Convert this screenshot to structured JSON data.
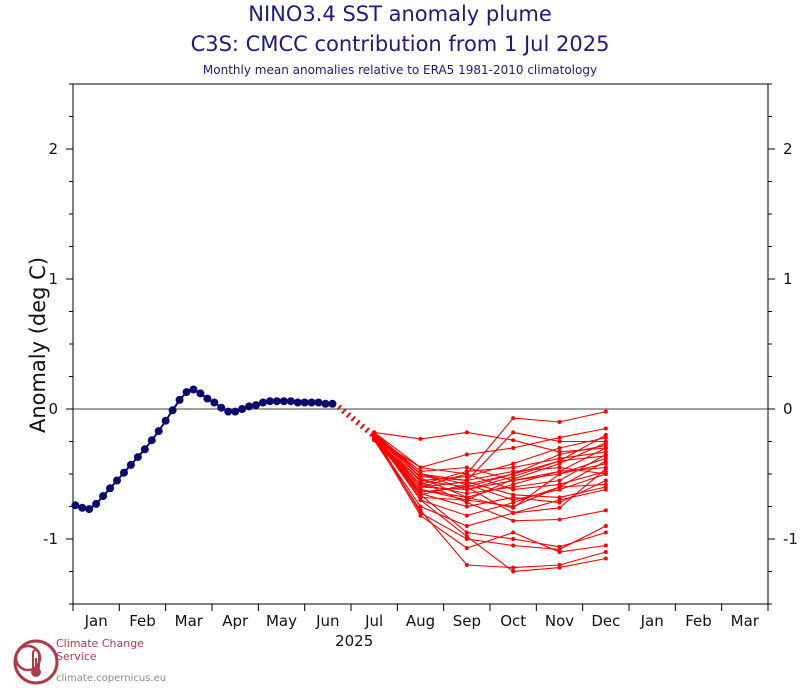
{
  "title": "NINO3.4 SST anomaly plume",
  "subtitle": "C3S: CMCC contribution from 1 Jul 2025",
  "caption": "Monthly mean anomalies relative to ERA5 1981-2010 climatology",
  "logo": {
    "text": "Climate Change Service",
    "url": "climate.copernicus.eu"
  },
  "colors": {
    "observed": "#0a0a6e",
    "forecast": "#ff0000",
    "title": "#1a1a80"
  },
  "chart_data": {
    "type": "line",
    "ylabel": "Anomaly (deg C)",
    "ylim": [
      -1.5,
      2.5
    ],
    "yticks": [
      -1,
      0,
      1,
      2
    ],
    "ytick_labels": [
      "-1",
      "0",
      "1",
      "2"
    ],
    "x_months": [
      "Jan",
      "Feb",
      "Mar",
      "Apr",
      "May",
      "Jun",
      "Jul",
      "Aug",
      "Sep",
      "Oct",
      "Nov",
      "Dec",
      "Jan",
      "Feb",
      "Mar"
    ],
    "year_label": "2025",
    "observed": {
      "name": "ERA5 observed (weekly)",
      "t": [
        -0.45,
        -0.3,
        -0.15,
        0.0,
        0.15,
        0.3,
        0.45,
        0.6,
        0.75,
        0.9,
        1.05,
        1.2,
        1.35,
        1.5,
        1.65,
        1.8,
        1.95,
        2.1,
        2.25,
        2.4,
        2.55,
        2.7,
        2.85,
        3.0,
        3.15,
        3.3,
        3.45,
        3.6,
        3.75,
        3.9,
        4.05,
        4.2,
        4.35,
        4.5,
        4.65,
        4.8,
        4.95,
        5.1
      ],
      "values": [
        -0.74,
        -0.76,
        -0.77,
        -0.73,
        -0.67,
        -0.61,
        -0.55,
        -0.49,
        -0.43,
        -0.37,
        -0.31,
        -0.24,
        -0.17,
        -0.09,
        -0.01,
        0.07,
        0.13,
        0.15,
        0.12,
        0.08,
        0.05,
        0.01,
        -0.02,
        -0.02,
        0.0,
        0.02,
        0.03,
        0.05,
        0.06,
        0.06,
        0.06,
        0.06,
        0.05,
        0.05,
        0.05,
        0.05,
        0.04,
        0.04
      ]
    },
    "forecast": {
      "name": "CMCC ensemble members",
      "t": [
        6,
        7,
        8,
        9,
        10,
        11
      ],
      "members": [
        [
          -0.18,
          -0.23,
          -0.18,
          -0.24,
          -0.33,
          -0.3
        ],
        [
          -0.2,
          -0.6,
          -0.5,
          -0.07,
          -0.1,
          -0.02
        ],
        [
          -0.22,
          -0.45,
          -0.35,
          -0.3,
          -0.22,
          -0.15
        ],
        [
          -0.2,
          -0.5,
          -0.55,
          -0.18,
          -0.25,
          -0.25
        ],
        [
          -0.23,
          -0.55,
          -0.6,
          -0.5,
          -0.4,
          -0.2
        ],
        [
          -0.19,
          -0.48,
          -0.45,
          -0.55,
          -0.48,
          -0.45
        ],
        [
          -0.21,
          -0.58,
          -0.65,
          -0.6,
          -0.55,
          -0.35
        ],
        [
          -0.24,
          -0.62,
          -0.7,
          -0.75,
          -0.6,
          -0.4
        ],
        [
          -0.2,
          -0.52,
          -0.55,
          -0.48,
          -0.45,
          -0.5
        ],
        [
          -0.22,
          -0.65,
          -0.75,
          -0.68,
          -0.72,
          -0.55
        ],
        [
          -0.18,
          -0.45,
          -0.5,
          -0.62,
          -0.58,
          -0.48
        ],
        [
          -0.2,
          -0.7,
          -0.82,
          -0.72,
          -0.6,
          -0.58
        ],
        [
          -0.21,
          -0.6,
          -0.62,
          -0.55,
          -0.5,
          -0.42
        ],
        [
          -0.23,
          -0.75,
          -0.9,
          -0.8,
          -0.7,
          -0.62
        ],
        [
          -0.2,
          -0.8,
          -1.0,
          -1.05,
          -1.08,
          -0.9
        ],
        [
          -0.22,
          -0.82,
          -1.07,
          -0.95,
          -1.1,
          -1.05
        ],
        [
          -0.24,
          -0.78,
          -1.2,
          -1.22,
          -1.2,
          -1.1
        ],
        [
          -0.2,
          -0.7,
          -0.98,
          -1.25,
          -1.22,
          -1.15
        ],
        [
          -0.21,
          -0.66,
          -0.95,
          -1.0,
          -1.06,
          -0.95
        ],
        [
          -0.19,
          -0.56,
          -0.72,
          -0.86,
          -0.85,
          -0.78
        ],
        [
          -0.2,
          -0.5,
          -0.58,
          -0.5,
          -0.35,
          -0.28
        ],
        [
          -0.22,
          -0.62,
          -0.68,
          -0.58,
          -0.48,
          -0.3
        ],
        [
          -0.2,
          -0.55,
          -0.52,
          -0.42,
          -0.3,
          -0.22
        ],
        [
          -0.23,
          -0.66,
          -0.58,
          -0.7,
          -0.62,
          -0.5
        ],
        [
          -0.21,
          -0.58,
          -0.48,
          -0.45,
          -0.38,
          -0.33
        ],
        [
          -0.19,
          -0.53,
          -0.68,
          -0.76,
          -0.5,
          -0.38
        ],
        [
          -0.22,
          -0.6,
          -0.56,
          -0.66,
          -0.68,
          -0.6
        ],
        [
          -0.2,
          -0.68,
          -0.7,
          -0.54,
          -0.42,
          -0.26
        ],
        [
          -0.21,
          -0.64,
          -0.6,
          -0.8,
          -0.76,
          -0.46
        ],
        [
          -0.18,
          -0.5,
          -0.62,
          -0.52,
          -0.4,
          -0.36
        ]
      ]
    }
  }
}
